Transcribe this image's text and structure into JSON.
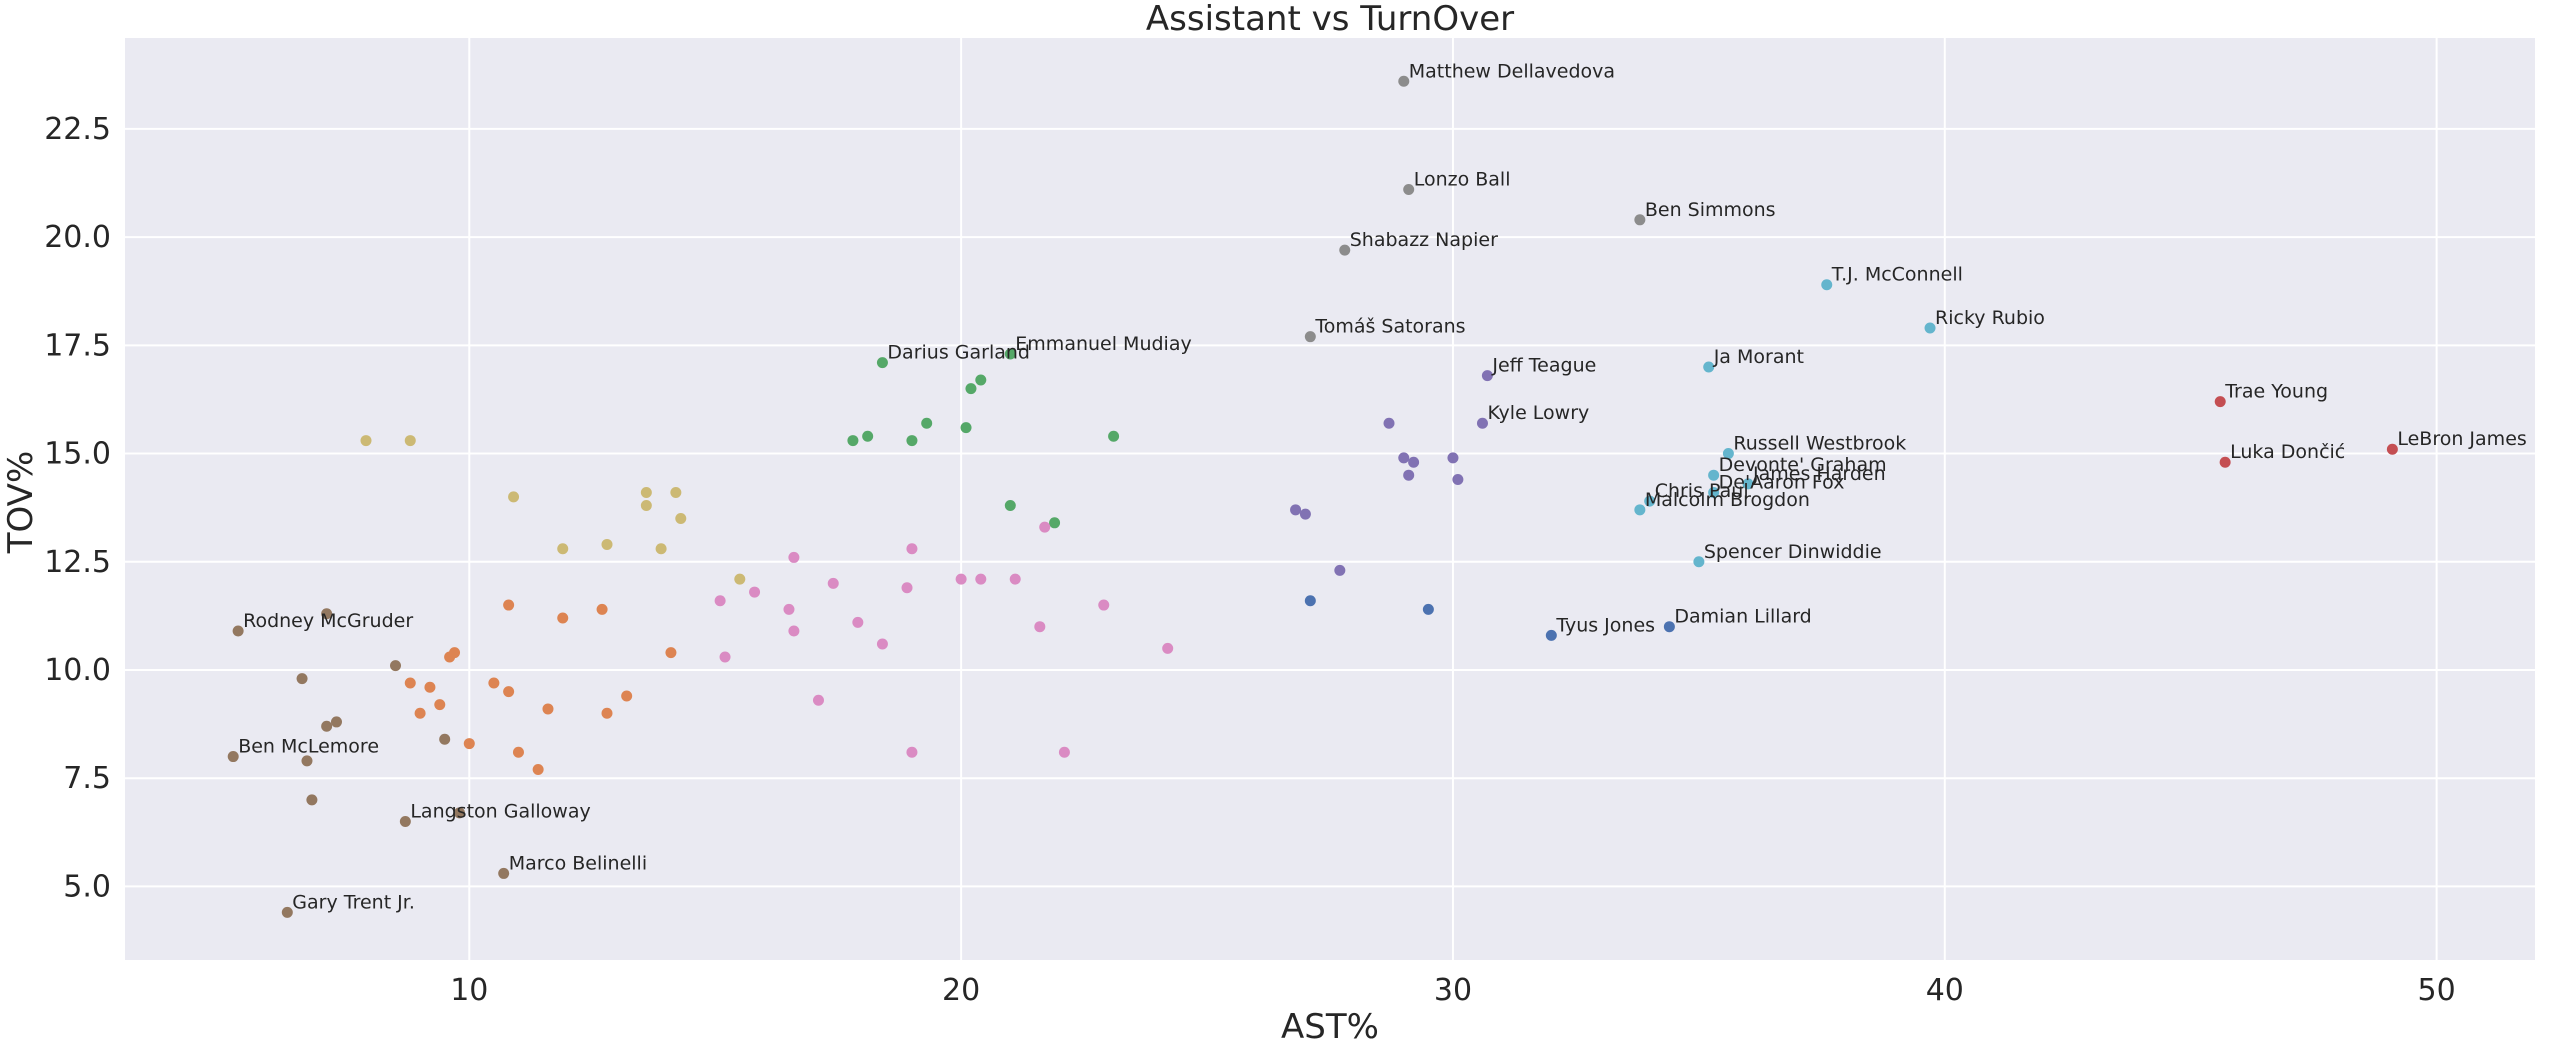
{
  "chart_data": {
    "type": "scatter",
    "title": "Assistant vs TurnOver",
    "xlabel": "AST%",
    "ylabel": "TOV%",
    "xlim": [
      3,
      52
    ],
    "ylim": [
      3.3,
      24.6
    ],
    "xticks": [
      10,
      20,
      30,
      40,
      50
    ],
    "yticks": [
      5.0,
      7.5,
      10.0,
      12.5,
      15.0,
      17.5,
      20.0,
      22.5
    ],
    "grid": true,
    "legend": "none",
    "colors": {
      "background": "#EAEAF2",
      "grid": "#FFFFFF",
      "blue": "#4C72B0",
      "orange": "#DD8452",
      "green": "#55A868",
      "red": "#C44E52",
      "purple": "#8172B3",
      "brown": "#937860",
      "pink": "#DA8BC3",
      "gray": "#8C8C8C",
      "olive": "#CCB974",
      "cyan": "#64B5CD"
    },
    "series": [
      {
        "color": "gray",
        "points": [
          {
            "x": 29.0,
            "y": 23.6,
            "label": "Matthew Dellavedova"
          },
          {
            "x": 29.1,
            "y": 21.1,
            "label": "Lonzo Ball"
          },
          {
            "x": 33.8,
            "y": 20.4,
            "label": "Ben Simmons"
          },
          {
            "x": 27.8,
            "y": 19.7,
            "label": "Shabazz Napier"
          },
          {
            "x": 27.1,
            "y": 17.7,
            "label": "Tomáš Satorans"
          }
        ]
      },
      {
        "color": "cyan",
        "points": [
          {
            "x": 37.6,
            "y": 18.9,
            "label": "T.J. McConnell"
          },
          {
            "x": 39.7,
            "y": 17.9,
            "label": "Ricky Rubio"
          },
          {
            "x": 35.2,
            "y": 17.0,
            "label": "Ja Morant"
          },
          {
            "x": 35.6,
            "y": 15.0,
            "label": "Russell Westbrook"
          },
          {
            "x": 35.3,
            "y": 14.5,
            "label": "Devonte' Graham"
          },
          {
            "x": 36.0,
            "y": 14.3,
            "label": "James Harden"
          },
          {
            "x": 35.3,
            "y": 14.1,
            "label": "De'Aaron Fox"
          },
          {
            "x": 34.0,
            "y": 13.9,
            "label": "Chris Paul"
          },
          {
            "x": 33.8,
            "y": 13.7,
            "label": "Malcolm Brogdon"
          },
          {
            "x": 35.0,
            "y": 12.5,
            "label": "Spencer Dinwiddie"
          }
        ]
      },
      {
        "color": "red",
        "points": [
          {
            "x": 45.6,
            "y": 16.2,
            "label": "Trae Young"
          },
          {
            "x": 45.7,
            "y": 14.8,
            "label": "Luka Dončić"
          },
          {
            "x": 49.1,
            "y": 15.1,
            "label": "LeBron James"
          }
        ]
      },
      {
        "color": "purple",
        "points": [
          {
            "x": 30.7,
            "y": 16.8,
            "label": "Jeff Teague"
          },
          {
            "x": 30.6,
            "y": 15.7,
            "label": "Kyle Lowry"
          },
          {
            "x": 28.7,
            "y": 15.7
          },
          {
            "x": 29.0,
            "y": 14.9
          },
          {
            "x": 29.2,
            "y": 14.8
          },
          {
            "x": 30.0,
            "y": 14.9
          },
          {
            "x": 29.1,
            "y": 14.5
          },
          {
            "x": 30.1,
            "y": 14.4
          },
          {
            "x": 26.8,
            "y": 13.7
          },
          {
            "x": 27.0,
            "y": 13.6
          },
          {
            "x": 27.7,
            "y": 12.3
          }
        ]
      },
      {
        "color": "blue",
        "points": [
          {
            "x": 32.0,
            "y": 10.8,
            "label": "Tyus Jones"
          },
          {
            "x": 34.4,
            "y": 11.0,
            "label": "Damian Lillard"
          },
          {
            "x": 27.1,
            "y": 11.6
          },
          {
            "x": 29.5,
            "y": 11.4
          }
        ]
      },
      {
        "color": "green",
        "points": [
          {
            "x": 18.4,
            "y": 17.1,
            "label": "Darius Garland"
          },
          {
            "x": 21.0,
            "y": 17.3,
            "label": "Emmanuel Mudiay"
          },
          {
            "x": 20.4,
            "y": 16.7
          },
          {
            "x": 20.2,
            "y": 16.5
          },
          {
            "x": 19.3,
            "y": 15.7
          },
          {
            "x": 20.1,
            "y": 15.6
          },
          {
            "x": 23.1,
            "y": 15.4
          },
          {
            "x": 18.1,
            "y": 15.4
          },
          {
            "x": 17.8,
            "y": 15.3
          },
          {
            "x": 19.0,
            "y": 15.3
          },
          {
            "x": 21.0,
            "y": 13.8
          },
          {
            "x": 21.9,
            "y": 13.4
          }
        ]
      },
      {
        "color": "olive",
        "points": [
          {
            "x": 7.9,
            "y": 15.3
          },
          {
            "x": 8.8,
            "y": 15.3
          },
          {
            "x": 10.9,
            "y": 14.0
          },
          {
            "x": 13.6,
            "y": 14.1
          },
          {
            "x": 14.2,
            "y": 14.1
          },
          {
            "x": 13.6,
            "y": 13.8
          },
          {
            "x": 14.3,
            "y": 13.5
          },
          {
            "x": 11.9,
            "y": 12.8
          },
          {
            "x": 12.8,
            "y": 12.9
          },
          {
            "x": 13.9,
            "y": 12.8
          },
          {
            "x": 15.5,
            "y": 12.1
          }
        ]
      },
      {
        "color": "pink",
        "points": [
          {
            "x": 21.7,
            "y": 13.3
          },
          {
            "x": 19.0,
            "y": 12.8
          },
          {
            "x": 16.6,
            "y": 12.6
          },
          {
            "x": 20.0,
            "y": 12.1
          },
          {
            "x": 20.4,
            "y": 12.1
          },
          {
            "x": 21.1,
            "y": 12.1
          },
          {
            "x": 17.4,
            "y": 12.0
          },
          {
            "x": 18.9,
            "y": 11.9
          },
          {
            "x": 15.8,
            "y": 11.8
          },
          {
            "x": 15.1,
            "y": 11.6
          },
          {
            "x": 16.5,
            "y": 11.4
          },
          {
            "x": 22.9,
            "y": 11.5
          },
          {
            "x": 17.9,
            "y": 11.1
          },
          {
            "x": 21.6,
            "y": 11.0
          },
          {
            "x": 16.6,
            "y": 10.9
          },
          {
            "x": 18.4,
            "y": 10.6
          },
          {
            "x": 24.2,
            "y": 10.5
          },
          {
            "x": 15.2,
            "y": 10.3
          },
          {
            "x": 17.1,
            "y": 9.3
          },
          {
            "x": 19.0,
            "y": 8.1
          },
          {
            "x": 22.1,
            "y": 8.1
          }
        ]
      },
      {
        "color": "orange",
        "points": [
          {
            "x": 10.8,
            "y": 11.5
          },
          {
            "x": 12.7,
            "y": 11.4
          },
          {
            "x": 11.9,
            "y": 11.2
          },
          {
            "x": 9.7,
            "y": 10.4
          },
          {
            "x": 9.6,
            "y": 10.3
          },
          {
            "x": 14.1,
            "y": 10.4
          },
          {
            "x": 10.5,
            "y": 9.7
          },
          {
            "x": 8.8,
            "y": 9.7
          },
          {
            "x": 9.2,
            "y": 9.6
          },
          {
            "x": 10.8,
            "y": 9.5
          },
          {
            "x": 13.2,
            "y": 9.4
          },
          {
            "x": 9.4,
            "y": 9.2
          },
          {
            "x": 11.6,
            "y": 9.1
          },
          {
            "x": 9.0,
            "y": 9.0
          },
          {
            "x": 12.8,
            "y": 9.0
          },
          {
            "x": 10.0,
            "y": 8.3
          },
          {
            "x": 11.0,
            "y": 8.1
          },
          {
            "x": 11.4,
            "y": 7.7
          }
        ]
      },
      {
        "color": "brown",
        "points": [
          {
            "x": 5.3,
            "y": 10.9,
            "label": "Rodney McGruder"
          },
          {
            "x": 5.2,
            "y": 8.0,
            "label": "Ben McLemore"
          },
          {
            "x": 8.7,
            "y": 6.5,
            "label": "Langston Galloway"
          },
          {
            "x": 10.7,
            "y": 5.3,
            "label": "Marco Belinelli"
          },
          {
            "x": 6.3,
            "y": 4.4,
            "label": "Gary Trent Jr."
          },
          {
            "x": 7.1,
            "y": 11.3
          },
          {
            "x": 8.5,
            "y": 10.1
          },
          {
            "x": 6.6,
            "y": 9.8
          },
          {
            "x": 7.3,
            "y": 8.8
          },
          {
            "x": 7.1,
            "y": 8.7
          },
          {
            "x": 9.5,
            "y": 8.4
          },
          {
            "x": 6.7,
            "y": 7.9
          },
          {
            "x": 6.8,
            "y": 7.0
          },
          {
            "x": 9.8,
            "y": 6.7
          }
        ]
      }
    ]
  }
}
